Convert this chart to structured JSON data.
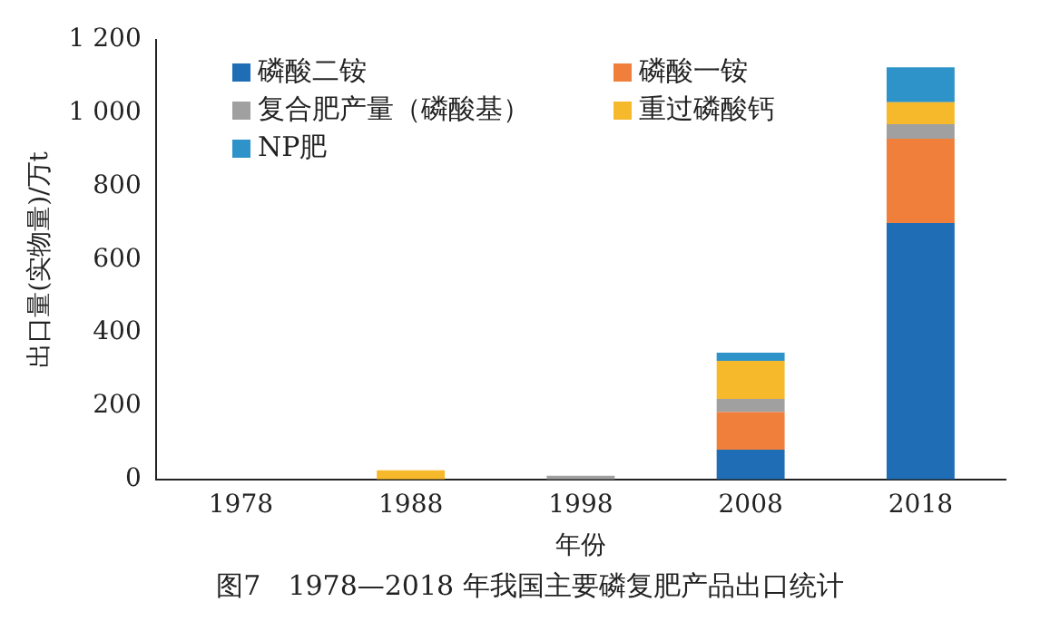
{
  "chart_data": {
    "type": "bar",
    "stacked": true,
    "xlabel": "年份",
    "ylabel": "出口量(实物量)/万t",
    "categories": [
      "1978",
      "1988",
      "1998",
      "2008",
      "2018"
    ],
    "series": [
      {
        "name": "磷酸二铵",
        "color": "#1f6db5",
        "values": [
          0,
          0,
          0,
          81,
          700
        ]
      },
      {
        "name": "磷酸一铵",
        "color": "#f07f3c",
        "values": [
          0,
          0,
          0,
          103,
          230
        ]
      },
      {
        "name": "复合肥产量（磷酸基）",
        "color": "#a0a0a0",
        "values": [
          0,
          0,
          10,
          36,
          40
        ]
      },
      {
        "name": "重过磷酸钙",
        "color": "#f6b92b",
        "values": [
          0,
          25,
          0,
          104,
          60
        ]
      },
      {
        "name": "NP肥",
        "color": "#2e93c9",
        "values": [
          0,
          0,
          0,
          22,
          95
        ]
      }
    ],
    "ylim": [
      0,
      1200
    ],
    "yticks": [
      0,
      200,
      400,
      600,
      800,
      {
        "value": 1000,
        "label": "1 000"
      },
      {
        "value": 1200,
        "label": "1 200"
      }
    ],
    "grid": false,
    "legend": "top left",
    "annotations": [
      "图7　1978—2018 年我国主要磷复肥产品出口统计"
    ]
  }
}
